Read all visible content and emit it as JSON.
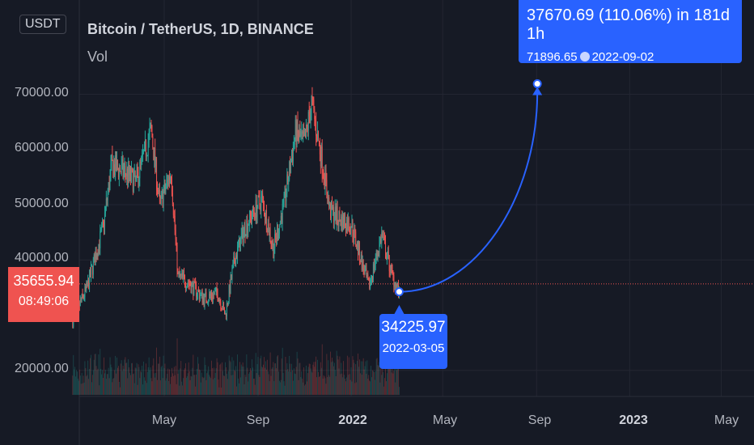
{
  "header": {
    "title": "Bitcoin / TetherUS, 1D, BINANCE",
    "volume_label": "Vol",
    "currency": "USDT"
  },
  "price_axis": {
    "labels": [
      "70000.00",
      "60000.00",
      "50000.00",
      "40000.00",
      "20000.00"
    ]
  },
  "time_axis": {
    "labels": [
      {
        "text": "May",
        "date": "2021-05-01",
        "bold": false
      },
      {
        "text": "Sep",
        "date": "2021-09-01",
        "bold": false
      },
      {
        "text": "2022",
        "date": "2022-01-01",
        "bold": true
      },
      {
        "text": "May",
        "date": "2022-05-01",
        "bold": false
      },
      {
        "text": "Sep",
        "date": "2022-09-01",
        "bold": false
      },
      {
        "text": "2023",
        "date": "2023-01-01",
        "bold": true
      },
      {
        "text": "May",
        "date": "2023-05-01",
        "bold": false
      }
    ]
  },
  "last_price": {
    "price": "35655.94",
    "countdown": "08:49:06",
    "color": "#ef5350"
  },
  "projection": {
    "start": {
      "price": "34225.97",
      "date": "2022-03-05"
    },
    "end": {
      "price": "71896.65",
      "date": "2022-09-02",
      "summary": "37670.69 (110.06%) in 181d 1h"
    },
    "color": "#2962ff"
  },
  "colors": {
    "up": "#26a69a",
    "down": "#ef5350",
    "background": "#161a25",
    "grid": "#232632"
  },
  "chart_data": {
    "type": "line",
    "symbol": "Bitcoin / TetherUS, 1D, BINANCE",
    "x": [
      "2021-01-01",
      "2021-01-20",
      "2021-02-10",
      "2021-02-21",
      "2021-03-10",
      "2021-03-25",
      "2021-04-14",
      "2021-04-25",
      "2021-05-10",
      "2021-05-19",
      "2021-06-01",
      "2021-06-22",
      "2021-07-10",
      "2021-07-20",
      "2021-08-01",
      "2021-08-15",
      "2021-09-06",
      "2021-09-21",
      "2021-10-05",
      "2021-10-20",
      "2021-11-01",
      "2021-11-10",
      "2021-11-25",
      "2021-12-04",
      "2021-12-20",
      "2022-01-01",
      "2022-01-10",
      "2022-01-24",
      "2022-02-10",
      "2022-02-24",
      "2022-03-05"
    ],
    "series": [
      {
        "name": "",
        "values": [
          29000,
          35000,
          46000,
          57000,
          56000,
          54000,
          63500,
          50000,
          56000,
          37000,
          36000,
          33000,
          34000,
          30000,
          40000,
          46000,
          51000,
          42000,
          50000,
          63000,
          61000,
          68500,
          57000,
          49000,
          47000,
          46500,
          42000,
          35000,
          44500,
          37000,
          34225.97
        ]
      }
    ],
    "projection_line": {
      "x": [
        "2022-03-05",
        "2022-09-02"
      ],
      "y": [
        34225.97,
        71896.65
      ]
    },
    "y_axis_ticks": [
      20000,
      40000,
      50000,
      60000,
      70000
    ],
    "volume_shown": true
  }
}
